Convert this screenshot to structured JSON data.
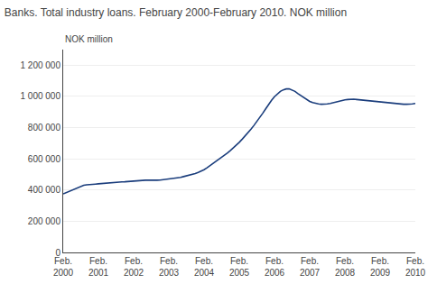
{
  "chart_data": {
    "type": "line",
    "title": "Banks. Total industry loans. February 2000-February 2010. NOK million",
    "ylabel": "NOK million",
    "color": "#1a3d7c",
    "grid": true,
    "ylim": [
      0,
      1300000
    ],
    "yticks": [
      0,
      {
        "value": 200000,
        "label": "200 000"
      },
      {
        "value": 400000,
        "label": "400 000"
      },
      {
        "value": 600000,
        "label": "600 000"
      },
      {
        "value": 800000,
        "label": "800 000"
      },
      {
        "value": 1000000,
        "label": "1 000 000"
      },
      {
        "value": 1200000,
        "label": "1 200 000"
      }
    ],
    "categories": [
      "Feb.\n2000",
      null,
      null,
      null,
      null,
      null,
      null,
      null,
      null,
      null,
      null,
      null,
      "Feb.\n2001",
      null,
      null,
      null,
      null,
      null,
      null,
      null,
      null,
      null,
      null,
      null,
      "Feb.\n2002",
      null,
      null,
      null,
      null,
      null,
      null,
      null,
      null,
      null,
      null,
      null,
      "Feb.\n2003",
      null,
      null,
      null,
      null,
      null,
      null,
      null,
      null,
      null,
      null,
      null,
      "Feb.\n2004",
      null,
      null,
      null,
      null,
      null,
      null,
      null,
      null,
      null,
      null,
      null,
      "Feb.\n2005",
      null,
      null,
      null,
      null,
      null,
      null,
      null,
      null,
      null,
      null,
      null,
      "Feb.\n2006",
      null,
      null,
      null,
      null,
      null,
      null,
      null,
      null,
      null,
      null,
      null,
      "Feb.\n2007",
      null,
      null,
      null,
      null,
      null,
      null,
      null,
      null,
      null,
      null,
      null,
      "Feb.\n2008",
      null,
      null,
      null,
      null,
      null,
      null,
      null,
      null,
      null,
      null,
      null,
      "Feb.\n2009",
      null,
      null,
      null,
      null,
      null,
      null,
      null,
      null,
      null,
      null,
      null,
      "Feb.\n2010"
    ],
    "values": [
      375000,
      383000,
      392000,
      400000,
      410000,
      418000,
      425000,
      430000,
      433000,
      436000,
      438000,
      438000,
      440000,
      442000,
      444000,
      446000,
      448000,
      449000,
      450000,
      451000,
      452000,
      453000,
      455000,
      457000,
      459000,
      461000,
      462000,
      463000,
      463000,
      463000,
      462000,
      462000,
      463000,
      464000,
      466000,
      468000,
      469000,
      471000,
      474000,
      477000,
      481000,
      486000,
      490000,
      495000,
      500000,
      506000,
      513000,
      521000,
      530000,
      542000,
      555000,
      568000,
      582000,
      596000,
      610000,
      624000,
      638000,
      654000,
      670000,
      688000,
      706000,
      726000,
      746000,
      768000,
      790000,
      814000,
      838000,
      864000,
      892000,
      920000,
      950000,
      975000,
      998000,
      1018000,
      1032000,
      1042000,
      1048000,
      1048000,
      1042000,
      1032000,
      1018000,
      1005000,
      992000,
      980000,
      968000,
      960000,
      955000,
      952000,
      950000,
      950000,
      952000,
      955000,
      960000,
      965000,
      970000,
      975000,
      978000,
      980000,
      982000,
      982000,
      980000,
      978000,
      975000,
      972000,
      970000,
      968000,
      966000,
      964000,
      962000,
      960000,
      958000,
      956000,
      954000,
      953000,
      952000,
      951000,
      950000,
      950000,
      950000,
      952000,
      955000
    ]
  }
}
